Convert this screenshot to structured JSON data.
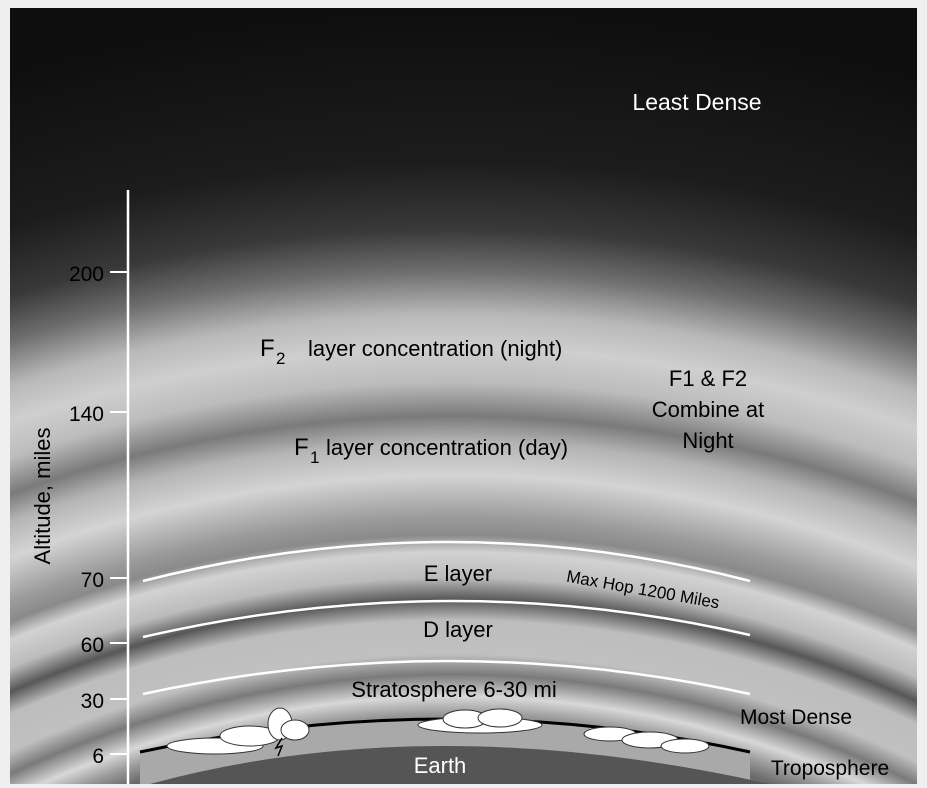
{
  "labels": {
    "least_dense": "Least Dense",
    "f2_letter": "F",
    "f2_sub": "2",
    "f2_text": "layer concentration (night)",
    "f1_letter": "F",
    "f1_sub": "1",
    "f1_text": "layer concentration (day)",
    "combine_line1": "F1 & F2",
    "combine_line2": "Combine at",
    "combine_line3": "Night",
    "e_layer": "E layer",
    "max_hop": "Max Hop 1200 Miles",
    "d_layer": "D layer",
    "stratosphere": "Stratosphere 6-30 mi",
    "most_dense": "Most Dense",
    "earth": "Earth",
    "troposphere": "Troposphere"
  },
  "axis": {
    "title": "Altitude, miles",
    "ticks": [
      "200",
      "140",
      "70",
      "60",
      "30",
      "6"
    ]
  },
  "colors": {
    "sky_top": "#101010",
    "band_light": "#cfcfcf",
    "band_dark": "#5a5a5a",
    "earth": "#555555",
    "cloud": "#ffffff",
    "text": "#000000",
    "text_light": "#ffffff"
  }
}
